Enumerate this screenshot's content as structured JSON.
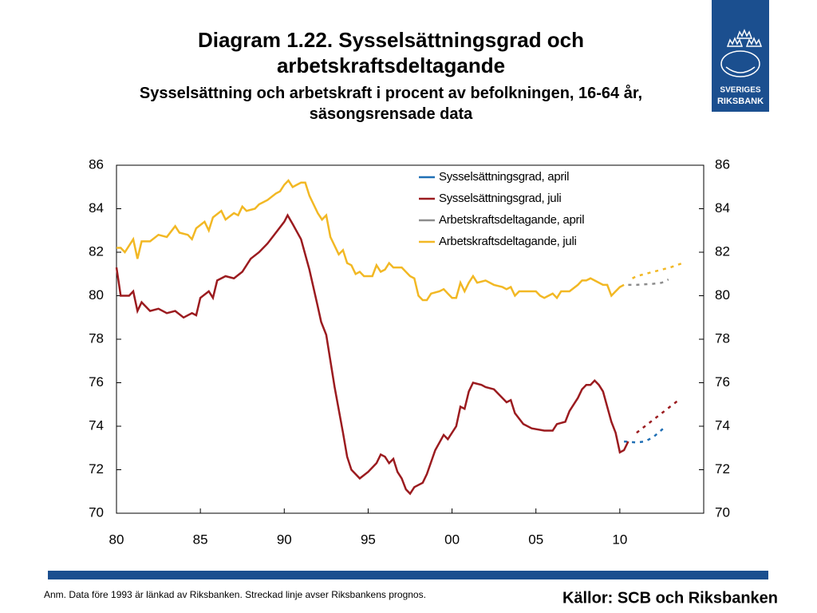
{
  "chart_data": {
    "type": "line",
    "title": "Diagram 1.22. Sysselsättningsgrad och arbetskraftsdeltagande",
    "subtitle": "Sysselsättning och arbetskraft i procent av befolkningen, 16-64 år, säsongsrensade data",
    "note": "Anm. Data före 1993 är länkad av Riksbanken. Streckad linje avser Riksbankens prognos.",
    "source": "Källor: SCB och Riksbanken",
    "logo": [
      "SVERIGES",
      "RIKSBANK"
    ],
    "xlim": [
      1980,
      2015
    ],
    "xticks": [
      {
        "value": 1980,
        "label": "80"
      },
      {
        "value": 1985,
        "label": "85"
      },
      {
        "value": 1990,
        "label": "90"
      },
      {
        "value": 1995,
        "label": "95"
      },
      {
        "value": 2000,
        "label": "00"
      },
      {
        "value": 2005,
        "label": "05"
      },
      {
        "value": 2010,
        "label": "10"
      }
    ],
    "ylim": [
      70,
      86
    ],
    "yticks": [
      70,
      72,
      74,
      76,
      78,
      80,
      82,
      84,
      86
    ],
    "legend": "upper right",
    "series": [
      {
        "name": "Sysselsättningsgrad, april",
        "color": "#1f6fb5",
        "forecast_from": 2010.25,
        "x": [
          2010.25,
          2011,
          2011.5,
          2012,
          2012.6
        ],
        "values": [
          73.3,
          73.25,
          73.3,
          73.5,
          73.9
        ]
      },
      {
        "name": "Sysselsättningsgrad, juli",
        "color": "#9b1b1f",
        "forecast_from": 2011,
        "x": [
          1980,
          1980.25,
          1980.75,
          1981,
          1981.25,
          1981.5,
          1982,
          1982.5,
          1983,
          1983.5,
          1984,
          1984.5,
          1984.75,
          1985,
          1985.5,
          1985.75,
          1986,
          1986.5,
          1987,
          1987.5,
          1988,
          1988.5,
          1989,
          1989.5,
          1990,
          1990.2,
          1990.5,
          1991,
          1991.5,
          1992,
          1992.2,
          1992.5,
          1993,
          1993.5,
          1993.75,
          1994,
          1994.5,
          1995,
          1995.5,
          1995.75,
          1996,
          1996.25,
          1996.5,
          1996.75,
          1997,
          1997.25,
          1997.5,
          1997.75,
          1998.25,
          1998.5,
          1999,
          1999.5,
          1999.75,
          2000.25,
          2000.5,
          2000.75,
          2001,
          2001.25,
          2001.75,
          2002,
          2002.5,
          2003,
          2003.25,
          2003.5,
          2003.75,
          2004.25,
          2004.75,
          2005.5,
          2006,
          2006.25,
          2006.75,
          2007,
          2007.5,
          2007.75,
          2008,
          2008.25,
          2008.5,
          2008.75,
          2009,
          2009.5,
          2009.75,
          2010,
          2010.25,
          2010.5,
          2011,
          2011.5,
          2012,
          2012.5,
          2013,
          2013.5
        ],
        "values": [
          81.3,
          80.0,
          80.0,
          80.2,
          79.3,
          79.7,
          79.3,
          79.4,
          79.2,
          79.3,
          79.0,
          79.2,
          79.1,
          79.9,
          80.2,
          79.9,
          80.7,
          80.9,
          80.8,
          81.1,
          81.7,
          82.0,
          82.4,
          82.9,
          83.4,
          83.7,
          83.3,
          82.6,
          81.2,
          79.5,
          78.8,
          78.2,
          75.8,
          73.7,
          72.6,
          72.0,
          71.6,
          71.9,
          72.3,
          72.7,
          72.6,
          72.3,
          72.5,
          71.9,
          71.6,
          71.1,
          70.9,
          71.2,
          71.4,
          71.8,
          72.9,
          73.6,
          73.4,
          74.0,
          74.9,
          74.8,
          75.6,
          76.0,
          75.9,
          75.8,
          75.7,
          75.3,
          75.1,
          75.2,
          74.6,
          74.1,
          73.9,
          73.8,
          73.8,
          74.1,
          74.2,
          74.7,
          75.3,
          75.7,
          75.9,
          75.9,
          76.1,
          75.9,
          75.6,
          74.2,
          73.7,
          72.8,
          72.9,
          73.3,
          73.7,
          74.0,
          74.3,
          74.6,
          74.9,
          75.2
        ]
      },
      {
        "name": "Arbetskraftsdeltagande, april",
        "color": "#8c8c8c",
        "forecast_from": 2010.5,
        "x": [
          2010.5,
          2011,
          2012,
          2012.5,
          2012.9
        ],
        "values": [
          80.5,
          80.5,
          80.55,
          80.6,
          80.75
        ]
      },
      {
        "name": "Arbetskraftsdeltagande, juli",
        "color": "#f2b824",
        "forecast_from": 2010.75,
        "x": [
          1980,
          1980.25,
          1980.5,
          1981,
          1981.25,
          1981.5,
          1982,
          1982.5,
          1983,
          1983.5,
          1983.75,
          1984.25,
          1984.5,
          1984.75,
          1985.25,
          1985.5,
          1985.75,
          1986.25,
          1986.5,
          1987,
          1987.25,
          1987.5,
          1987.75,
          1988.25,
          1988.5,
          1989,
          1989.5,
          1989.75,
          1990,
          1990.25,
          1990.5,
          1990.75,
          1991,
          1991.25,
          1991.5,
          1992,
          1992.25,
          1992.5,
          1992.75,
          1993.25,
          1993.5,
          1993.75,
          1994,
          1994.25,
          1994.5,
          1994.75,
          1995.25,
          1995.5,
          1995.75,
          1996,
          1996.25,
          1996.5,
          1997,
          1997.5,
          1997.75,
          1998,
          1998.25,
          1998.5,
          1998.75,
          1999.25,
          1999.5,
          1999.75,
          2000,
          2000.25,
          2000.5,
          2000.75,
          2001,
          2001.25,
          2001.5,
          2002,
          2002.5,
          2003,
          2003.25,
          2003.5,
          2003.75,
          2004,
          2004.5,
          2005,
          2005.25,
          2005.5,
          2005.75,
          2006,
          2006.25,
          2006.5,
          2007,
          2007.5,
          2007.75,
          2008,
          2008.25,
          2008.5,
          2009,
          2009.25,
          2009.5,
          2009.75,
          2010,
          2010.25,
          2010.75,
          2011,
          2011.5,
          2012,
          2012.5,
          2013,
          2013.75
        ],
        "values": [
          82.2,
          82.2,
          82.0,
          82.6,
          81.7,
          82.5,
          82.5,
          82.8,
          82.7,
          83.2,
          82.9,
          82.8,
          82.6,
          83.1,
          83.4,
          83.0,
          83.6,
          83.9,
          83.5,
          83.8,
          83.7,
          84.1,
          83.9,
          84.0,
          84.2,
          84.4,
          84.7,
          84.8,
          85.1,
          85.3,
          85.0,
          85.1,
          85.2,
          85.2,
          84.6,
          83.8,
          83.5,
          83.7,
          82.7,
          81.9,
          82.1,
          81.5,
          81.4,
          81.0,
          81.1,
          80.9,
          80.9,
          81.4,
          81.1,
          81.2,
          81.5,
          81.3,
          81.3,
          80.9,
          80.8,
          80.0,
          79.8,
          79.8,
          80.1,
          80.2,
          80.3,
          80.1,
          79.9,
          79.9,
          80.6,
          80.2,
          80.6,
          80.9,
          80.6,
          80.7,
          80.5,
          80.4,
          80.3,
          80.4,
          80.0,
          80.2,
          80.2,
          80.2,
          80.0,
          79.9,
          80.0,
          80.1,
          79.9,
          80.2,
          80.2,
          80.5,
          80.7,
          80.7,
          80.8,
          80.7,
          80.5,
          80.5,
          80.0,
          80.2,
          80.4,
          80.5,
          80.8,
          80.9,
          81.0,
          81.1,
          81.2,
          81.3,
          81.5
        ]
      }
    ]
  }
}
